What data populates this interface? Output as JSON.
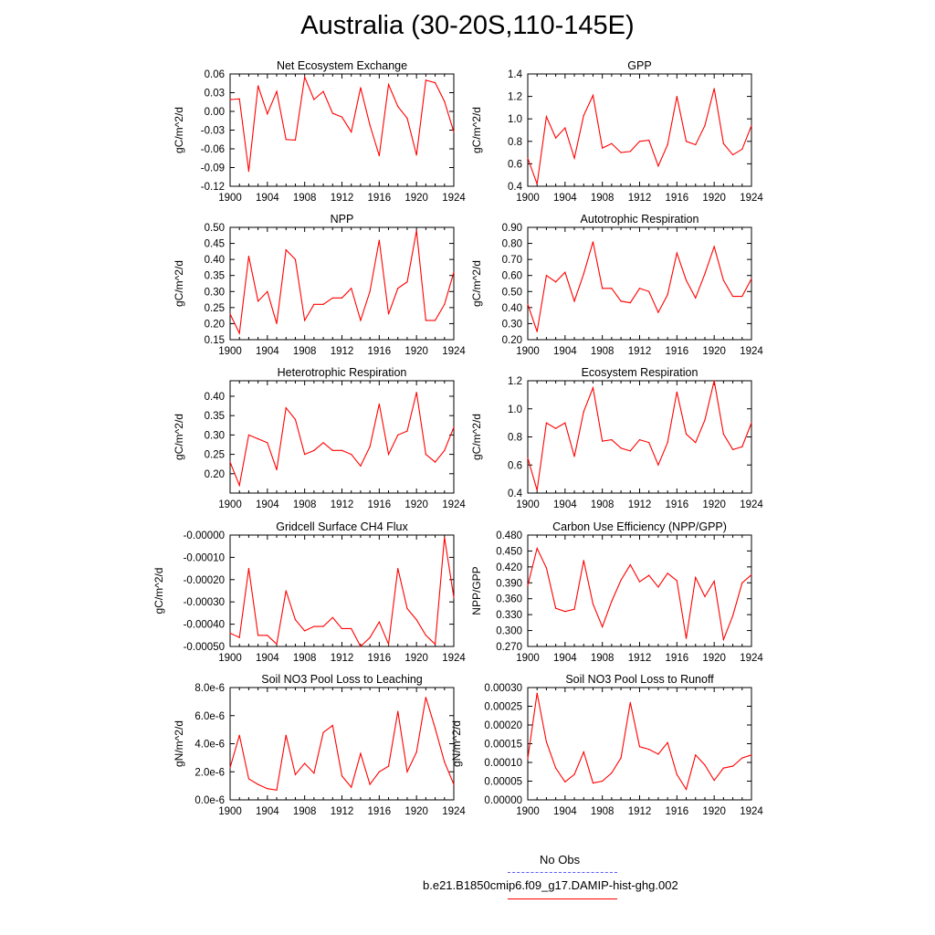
{
  "title": "Australia (30-20S,110-145E)",
  "colors": {
    "model": "#ff0000",
    "obs": "#5a5aff",
    "axes": "#000000"
  },
  "legend": {
    "obs_label": "No Obs",
    "model_label": "b.e21.B1850cmip6.f09_g17.DAMIP-hist-ghg.002"
  },
  "chart_data": [
    {
      "type": "line",
      "title": "Net Ecosystem Exchange",
      "ylabel": "gC/m^2/d",
      "xlim": [
        1900,
        1924
      ],
      "xticks": [
        "1900",
        "1904",
        "1908",
        "1912",
        "1916",
        "1920",
        "1924"
      ],
      "ylim": [
        -0.12,
        0.06
      ],
      "yticks": [
        "-0.12",
        "-0.09",
        "-0.06",
        "-0.03",
        "0.00",
        "0.03",
        "0.06"
      ],
      "x": [
        1900,
        1901,
        1902,
        1903,
        1904,
        1905,
        1906,
        1907,
        1908,
        1909,
        1910,
        1911,
        1912,
        1913,
        1914,
        1915,
        1916,
        1917,
        1918,
        1919,
        1920,
        1921,
        1922,
        1923,
        1924
      ],
      "series": [
        {
          "values": [
            0.019,
            0.02,
            -0.096,
            0.041,
            -0.004,
            0.032,
            -0.045,
            -0.046,
            0.055,
            0.019,
            0.032,
            -0.003,
            -0.009,
            -0.033,
            0.038,
            -0.022,
            -0.071,
            0.043,
            0.008,
            -0.011,
            -0.07,
            0.05,
            0.046,
            0.016,
            -0.033
          ]
        }
      ]
    },
    {
      "type": "line",
      "title": "GPP",
      "ylabel": "gC/m^2/d",
      "xlim": [
        1900,
        1924
      ],
      "xticks": [
        "1900",
        "1904",
        "1908",
        "1912",
        "1916",
        "1920",
        "1924"
      ],
      "ylim": [
        0.4,
        1.4
      ],
      "yticks": [
        "0.4",
        "0.6",
        "0.8",
        "1.0",
        "1.2",
        "1.4"
      ],
      "x": [
        1900,
        1901,
        1902,
        1903,
        1904,
        1905,
        1906,
        1907,
        1908,
        1909,
        1910,
        1911,
        1912,
        1913,
        1914,
        1915,
        1916,
        1917,
        1918,
        1919,
        1920,
        1921,
        1922,
        1923,
        1924
      ],
      "series": [
        {
          "values": [
            0.65,
            0.42,
            1.02,
            0.83,
            0.92,
            0.65,
            1.03,
            1.21,
            0.74,
            0.78,
            0.7,
            0.71,
            0.8,
            0.81,
            0.58,
            0.77,
            1.2,
            0.8,
            0.77,
            0.94,
            1.27,
            0.78,
            0.68,
            0.73,
            0.94
          ]
        }
      ]
    },
    {
      "type": "line",
      "title": "NPP",
      "ylabel": "gC/m^2/d",
      "xlim": [
        1900,
        1924
      ],
      "xticks": [
        "1900",
        "1904",
        "1908",
        "1912",
        "1916",
        "1920",
        "1924"
      ],
      "ylim": [
        0.15,
        0.5
      ],
      "yticks": [
        "0.15",
        "0.20",
        "0.25",
        "0.30",
        "0.35",
        "0.40",
        "0.45",
        "0.50"
      ],
      "x": [
        1900,
        1901,
        1902,
        1903,
        1904,
        1905,
        1906,
        1907,
        1908,
        1909,
        1910,
        1911,
        1912,
        1913,
        1914,
        1915,
        1916,
        1917,
        1918,
        1919,
        1920,
        1921,
        1922,
        1923,
        1924
      ],
      "series": [
        {
          "values": [
            0.23,
            0.17,
            0.41,
            0.27,
            0.3,
            0.2,
            0.43,
            0.4,
            0.21,
            0.26,
            0.26,
            0.28,
            0.28,
            0.31,
            0.21,
            0.3,
            0.46,
            0.23,
            0.31,
            0.33,
            0.49,
            0.21,
            0.21,
            0.26,
            0.36
          ]
        }
      ]
    },
    {
      "type": "line",
      "title": "Autotrophic Respiration",
      "ylabel": "gC/m^2/d",
      "xlim": [
        1900,
        1924
      ],
      "xticks": [
        "1900",
        "1904",
        "1908",
        "1912",
        "1916",
        "1920",
        "1924"
      ],
      "ylim": [
        0.2,
        0.9
      ],
      "yticks": [
        "0.20",
        "0.30",
        "0.40",
        "0.50",
        "0.60",
        "0.70",
        "0.80",
        "0.90"
      ],
      "x": [
        1900,
        1901,
        1902,
        1903,
        1904,
        1905,
        1906,
        1907,
        1908,
        1909,
        1910,
        1911,
        1912,
        1913,
        1914,
        1915,
        1916,
        1917,
        1918,
        1919,
        1920,
        1921,
        1922,
        1923,
        1924
      ],
      "series": [
        {
          "values": [
            0.42,
            0.25,
            0.6,
            0.56,
            0.62,
            0.44,
            0.61,
            0.81,
            0.52,
            0.52,
            0.44,
            0.43,
            0.52,
            0.5,
            0.37,
            0.48,
            0.74,
            0.57,
            0.46,
            0.61,
            0.78,
            0.57,
            0.47,
            0.47,
            0.58
          ]
        }
      ]
    },
    {
      "type": "line",
      "title": "Heterotrophic Respiration",
      "ylabel": "gC/m^2/d",
      "xlim": [
        1900,
        1924
      ],
      "xticks": [
        "1900",
        "1904",
        "1908",
        "1912",
        "1916",
        "1920",
        "1924"
      ],
      "ylim": [
        0.15,
        0.44
      ],
      "yticks": [
        "0.20",
        "0.25",
        "0.30",
        "0.35",
        "0.40"
      ],
      "x": [
        1900,
        1901,
        1902,
        1903,
        1904,
        1905,
        1906,
        1907,
        1908,
        1909,
        1910,
        1911,
        1912,
        1913,
        1914,
        1915,
        1916,
        1917,
        1918,
        1919,
        1920,
        1921,
        1922,
        1923,
        1924
      ],
      "series": [
        {
          "values": [
            0.23,
            0.17,
            0.3,
            0.29,
            0.28,
            0.21,
            0.37,
            0.34,
            0.25,
            0.26,
            0.28,
            0.26,
            0.26,
            0.25,
            0.22,
            0.27,
            0.38,
            0.25,
            0.3,
            0.31,
            0.41,
            0.25,
            0.23,
            0.26,
            0.32
          ]
        }
      ]
    },
    {
      "type": "line",
      "title": "Ecosystem Respiration",
      "ylabel": "gC/m^2/d",
      "xlim": [
        1900,
        1924
      ],
      "xticks": [
        "1900",
        "1904",
        "1908",
        "1912",
        "1916",
        "1920",
        "1924"
      ],
      "ylim": [
        0.4,
        1.2
      ],
      "yticks": [
        "0.4",
        "0.6",
        "0.8",
        "1.0",
        "1.2"
      ],
      "x": [
        1900,
        1901,
        1902,
        1903,
        1904,
        1905,
        1906,
        1907,
        1908,
        1909,
        1910,
        1911,
        1912,
        1913,
        1914,
        1915,
        1916,
        1917,
        1918,
        1919,
        1920,
        1921,
        1922,
        1923,
        1924
      ],
      "series": [
        {
          "values": [
            0.65,
            0.42,
            0.9,
            0.86,
            0.9,
            0.66,
            0.98,
            1.15,
            0.77,
            0.78,
            0.72,
            0.7,
            0.78,
            0.76,
            0.6,
            0.76,
            1.12,
            0.82,
            0.76,
            0.92,
            1.2,
            0.82,
            0.71,
            0.73,
            0.9
          ]
        }
      ]
    },
    {
      "type": "line",
      "title": "Gridcell Surface CH4 Flux",
      "ylabel": "gC/m^2/d",
      "xlim": [
        1900,
        1924
      ],
      "xticks": [
        "1900",
        "1904",
        "1908",
        "1912",
        "1916",
        "1920",
        "1924"
      ],
      "ylim": [
        -0.0005,
        0.0
      ],
      "yticks": [
        "-0.00050",
        "-0.00040",
        "-0.00030",
        "-0.00020",
        "-0.00010",
        "-0.00000"
      ],
      "x": [
        1900,
        1901,
        1902,
        1903,
        1904,
        1905,
        1906,
        1907,
        1908,
        1909,
        1910,
        1911,
        1912,
        1913,
        1914,
        1915,
        1916,
        1917,
        1918,
        1919,
        1920,
        1921,
        1922,
        1923,
        1924
      ],
      "series": [
        {
          "values": [
            -0.00044,
            -0.00046,
            -0.00015,
            -0.00045,
            -0.00045,
            -0.00049,
            -0.00025,
            -0.00038,
            -0.00043,
            -0.00041,
            -0.00041,
            -0.00037,
            -0.00042,
            -0.00042,
            -0.0005,
            -0.00046,
            -0.00039,
            -0.00049,
            -0.00015,
            -0.00033,
            -0.00038,
            -0.00045,
            -0.00049,
            -1e-05,
            -0.00028
          ]
        }
      ]
    },
    {
      "type": "line",
      "title": "Carbon Use Efficiency (NPP/GPP)",
      "ylabel": "NPP/GPP",
      "xlim": [
        1900,
        1924
      ],
      "xticks": [
        "1900",
        "1904",
        "1908",
        "1912",
        "1916",
        "1920",
        "1924"
      ],
      "ylim": [
        0.27,
        0.48
      ],
      "yticks": [
        "0.270",
        "0.300",
        "0.330",
        "0.360",
        "0.390",
        "0.420",
        "0.450",
        "0.480"
      ],
      "x": [
        1900,
        1901,
        1902,
        1903,
        1904,
        1905,
        1906,
        1907,
        1908,
        1909,
        1910,
        1911,
        1912,
        1913,
        1914,
        1915,
        1916,
        1917,
        1918,
        1919,
        1920,
        1921,
        1922,
        1923,
        1924
      ],
      "series": [
        {
          "values": [
            0.385,
            0.455,
            0.418,
            0.342,
            0.336,
            0.34,
            0.432,
            0.35,
            0.307,
            0.355,
            0.395,
            0.424,
            0.392,
            0.404,
            0.382,
            0.408,
            0.394,
            0.285,
            0.4,
            0.364,
            0.393,
            0.283,
            0.328,
            0.39,
            0.405
          ]
        }
      ]
    },
    {
      "type": "line",
      "title": "Soil NO3 Pool Loss to Leaching",
      "ylabel": "gN/m^2/d",
      "xlim": [
        1900,
        1924
      ],
      "xticks": [
        "1900",
        "1904",
        "1908",
        "1912",
        "1916",
        "1920",
        "1924"
      ],
      "ylim": [
        0.0,
        8e-06
      ],
      "yticks": [
        "0.0e-6",
        "2.0e-6",
        "4.0e-6",
        "6.0e-6",
        "8.0e-6"
      ],
      "x": [
        1900,
        1901,
        1902,
        1903,
        1904,
        1905,
        1906,
        1907,
        1908,
        1909,
        1910,
        1911,
        1912,
        1913,
        1914,
        1915,
        1916,
        1917,
        1918,
        1919,
        1920,
        1921,
        1922,
        1923,
        1924
      ],
      "series": [
        {
          "values": [
            2.3e-06,
            4.6e-06,
            1.5e-06,
            1.1e-06,
            8e-07,
            7e-07,
            4.6e-06,
            1.8e-06,
            2.6e-06,
            1.9e-06,
            4.8e-06,
            5.3e-06,
            1.7e-06,
            9e-07,
            3.3e-06,
            1.1e-06,
            2e-06,
            2.4e-06,
            6.3e-06,
            2e-06,
            3.4e-06,
            7.3e-06,
            5.1e-06,
            2.7e-06,
            1.1e-06
          ]
        }
      ]
    },
    {
      "type": "line",
      "title": "Soil NO3 Pool Loss to Runoff",
      "ylabel": "gN/m^2/d",
      "xlim": [
        1900,
        1924
      ],
      "xticks": [
        "1900",
        "1904",
        "1908",
        "1912",
        "1916",
        "1920",
        "1924"
      ],
      "ylim": [
        0.0,
        0.0003
      ],
      "yticks": [
        "0.00000",
        "0.00005",
        "0.00010",
        "0.00015",
        "0.00020",
        "0.00025",
        "0.00030"
      ],
      "x": [
        1900,
        1901,
        1902,
        1903,
        1904,
        1905,
        1906,
        1907,
        1908,
        1909,
        1910,
        1911,
        1912,
        1913,
        1914,
        1915,
        1916,
        1917,
        1918,
        1919,
        1920,
        1921,
        1922,
        1923,
        1924
      ],
      "series": [
        {
          "values": [
            0.00011,
            0.000285,
            0.000155,
            8.5e-05,
            4.8e-05,
            6.8e-05,
            0.000128,
            4.5e-05,
            5e-05,
            7.2e-05,
            0.000112,
            0.00026,
            0.000142,
            0.000135,
            0.000122,
            0.000153,
            6.8e-05,
            2.8e-05,
            0.00012,
            9.3e-05,
            5.2e-05,
            8.5e-05,
            9e-05,
            0.000112,
            0.00012
          ]
        }
      ]
    }
  ]
}
